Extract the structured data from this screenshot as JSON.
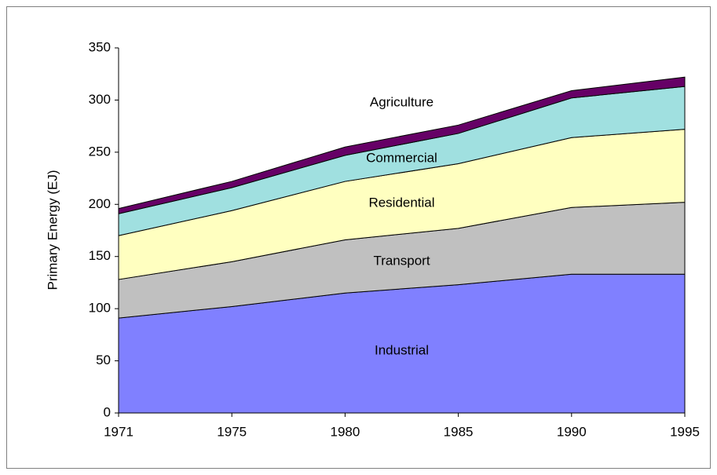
{
  "chart_data": {
    "type": "stacked_area",
    "y_label": "Primary Energy (EJ)",
    "categories": [
      "1971",
      "1975",
      "1980",
      "1985",
      "1990",
      "1995"
    ],
    "series": [
      {
        "name": "Industrial",
        "color": "#8080ff",
        "values": [
          91,
          102,
          115,
          123,
          133,
          133
        ]
      },
      {
        "name": "Transport",
        "color": "#c0c0c0",
        "values": [
          37,
          43,
          51,
          54,
          64,
          69
        ]
      },
      {
        "name": "Residential",
        "color": "#ffffc0",
        "values": [
          42,
          49,
          56,
          62,
          67,
          70
        ]
      },
      {
        "name": "Commercial",
        "color": "#a0e0e0",
        "values": [
          21,
          22,
          25,
          29,
          38,
          41
        ]
      },
      {
        "name": "Agriculture",
        "color": "#660066",
        "values": [
          5,
          6,
          8,
          8,
          7,
          9
        ]
      }
    ],
    "ylim": [
      0,
      350
    ],
    "yticks": [
      0,
      50,
      100,
      150,
      200,
      250,
      300,
      350
    ]
  }
}
